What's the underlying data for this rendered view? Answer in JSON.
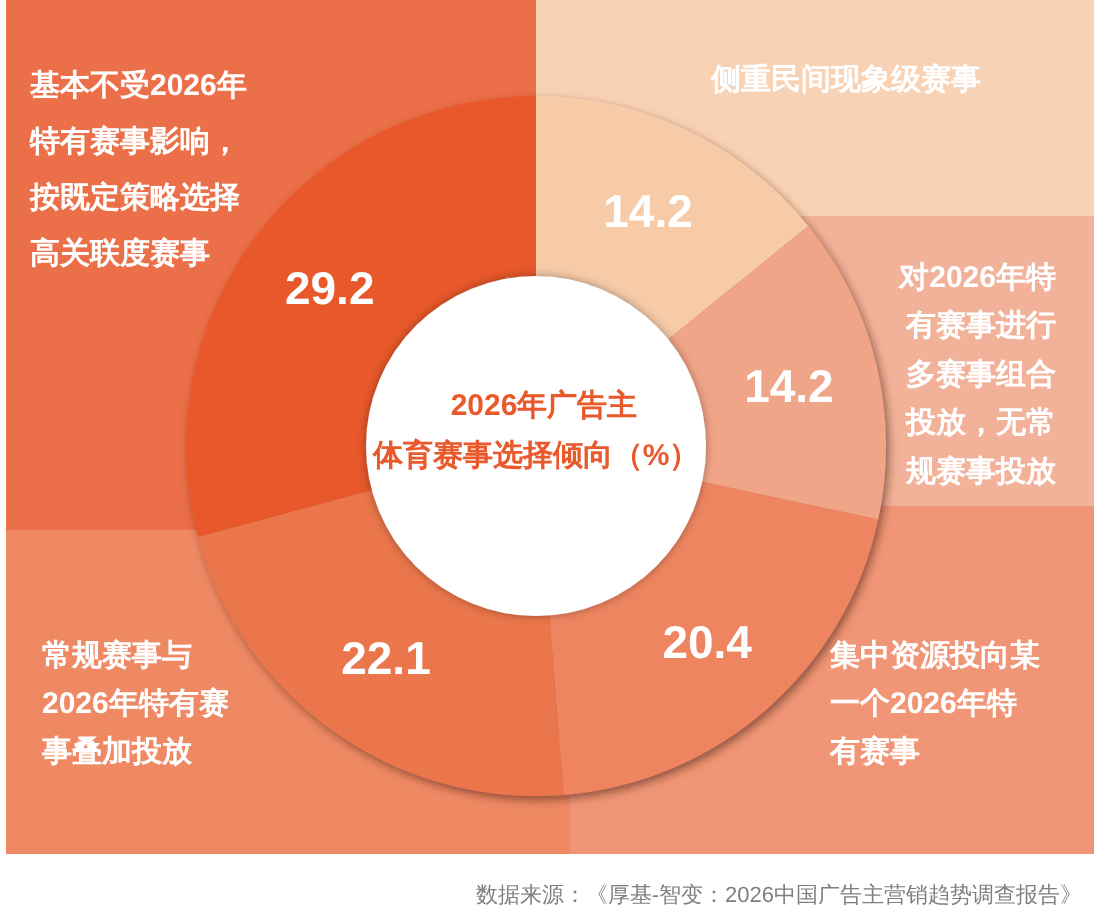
{
  "chart_data": {
    "type": "donut",
    "title": "2026年广告主",
    "subtitle": "体育赛事选择倾向（%）",
    "categories": [
      "侧重民间现象级赛事",
      "对2026年特有赛事进行多赛事组合投放，无常规赛事投放",
      "集中资源投向某一个2026年特有赛事",
      "常规赛事与2026年特有赛事叠加投放",
      "基本不受2026年特有赛事影响，按既定策略选择高关联度赛事"
    ],
    "values": [
      14.2,
      14.2,
      20.4,
      22.1,
      29.2
    ],
    "colors": [
      "#f7cba8",
      "#f0a488",
      "#ee8560",
      "#eb764b",
      "#e8582a"
    ],
    "data_labels": true,
    "annotations": [
      "数据来源：《厚基-智变：2026中国广告主营销趋势调查报告》"
    ]
  }
}
